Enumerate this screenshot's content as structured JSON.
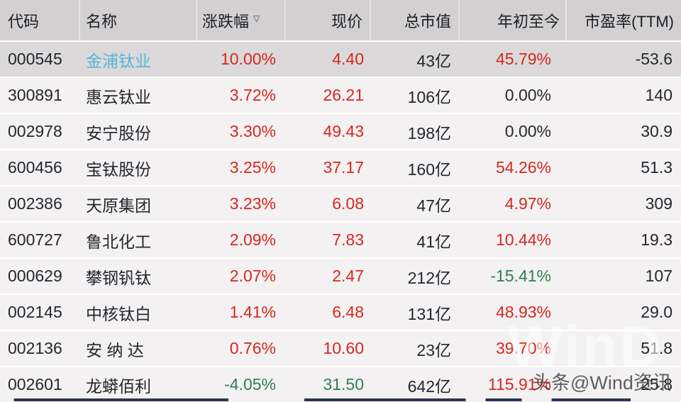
{
  "table": {
    "sort_indicator": "▽",
    "columns": [
      {
        "key": "code",
        "label": "代码"
      },
      {
        "key": "name",
        "label": "名称"
      },
      {
        "key": "chg",
        "label": "涨跌幅"
      },
      {
        "key": "price",
        "label": "现价"
      },
      {
        "key": "mcap",
        "label": "总市值"
      },
      {
        "key": "ytd",
        "label": "年初至今"
      },
      {
        "key": "pe",
        "label": "市盈率(TTM)"
      }
    ],
    "rows": [
      {
        "highlight": true,
        "values": {
          "code": "000545",
          "name": "金浦钛业",
          "chg": "10.00%",
          "price": "4.40",
          "mcap": "43亿",
          "ytd": "45.79%",
          "pe": "-53.6"
        },
        "styles": {
          "name": "link",
          "chg": "up",
          "price": "up",
          "ytd": "up"
        }
      },
      {
        "highlight": false,
        "values": {
          "code": "300891",
          "name": "惠云钛业",
          "chg": "3.72%",
          "price": "26.21",
          "mcap": "106亿",
          "ytd": "0.00%",
          "pe": "140"
        },
        "styles": {
          "chg": "up",
          "price": "up"
        }
      },
      {
        "highlight": false,
        "values": {
          "code": "002978",
          "name": "安宁股份",
          "chg": "3.30%",
          "price": "49.43",
          "mcap": "198亿",
          "ytd": "0.00%",
          "pe": "30.9"
        },
        "styles": {
          "chg": "up",
          "price": "up"
        }
      },
      {
        "highlight": false,
        "values": {
          "code": "600456",
          "name": "宝钛股份",
          "chg": "3.25%",
          "price": "37.17",
          "mcap": "160亿",
          "ytd": "54.26%",
          "pe": "51.3"
        },
        "styles": {
          "chg": "up",
          "price": "up",
          "ytd": "up"
        }
      },
      {
        "highlight": false,
        "values": {
          "code": "002386",
          "name": "天原集团",
          "chg": "3.23%",
          "price": "6.08",
          "mcap": "47亿",
          "ytd": "4.97%",
          "pe": "309"
        },
        "styles": {
          "chg": "up",
          "price": "up",
          "ytd": "up"
        }
      },
      {
        "highlight": false,
        "values": {
          "code": "600727",
          "name": "鲁北化工",
          "chg": "2.09%",
          "price": "7.83",
          "mcap": "41亿",
          "ytd": "10.44%",
          "pe": "19.3"
        },
        "styles": {
          "chg": "up",
          "price": "up",
          "ytd": "up"
        }
      },
      {
        "highlight": false,
        "values": {
          "code": "000629",
          "name": "攀钢钒钛",
          "chg": "2.07%",
          "price": "2.47",
          "mcap": "212亿",
          "ytd": "-15.41%",
          "pe": "107"
        },
        "styles": {
          "chg": "up",
          "price": "up",
          "ytd": "down"
        }
      },
      {
        "highlight": false,
        "values": {
          "code": "002145",
          "name": "中核钛白",
          "chg": "1.41%",
          "price": "6.48",
          "mcap": "131亿",
          "ytd": "48.93%",
          "pe": "29.0"
        },
        "styles": {
          "chg": "up",
          "price": "up",
          "ytd": "up"
        }
      },
      {
        "highlight": false,
        "values": {
          "code": "002136",
          "name": "安 纳 达",
          "chg": "0.76%",
          "price": "10.60",
          "mcap": "23亿",
          "ytd": "39.70%",
          "pe": "51.8"
        },
        "styles": {
          "chg": "up",
          "price": "up",
          "ytd": "up"
        }
      },
      {
        "highlight": false,
        "values": {
          "code": "002601",
          "name": "龙蟒佰利",
          "chg": "-4.05%",
          "price": "31.50",
          "mcap": "642亿",
          "ytd": "115.91%",
          "pe": "25.8"
        },
        "styles": {
          "chg": "down",
          "price": "down",
          "ytd": "up"
        }
      }
    ]
  },
  "watermark": {
    "big": "WinD",
    "small": "头条@Wind资讯"
  },
  "colors": {
    "up_red": "#d5281f",
    "down_green": "#2c8150",
    "name_link_blue": "#5cb4da",
    "header_bg": "#d2d0d0",
    "row_bg": "#f3f1f2",
    "highlight_row_bg": "#dbd9d9"
  }
}
